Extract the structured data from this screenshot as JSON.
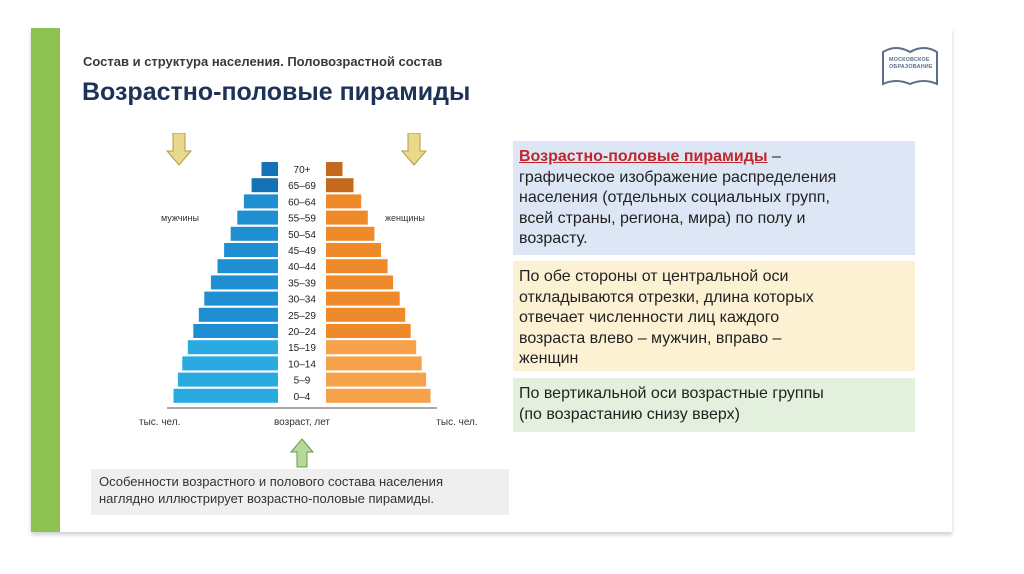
{
  "header": {
    "subtitle": "Состав и структура населения. Половозрастной состав",
    "title": "Возрастно-половые пирамиды"
  },
  "logo": {
    "line1": "МОСКОВСКОЕ",
    "line2": "ОБРАЗОВАНИЕ",
    "icon": "book-outline-icon",
    "color": "#5b6f8a"
  },
  "pyramid": {
    "label_left": "мужчины",
    "label_right": "женщины",
    "axis_left": "тыс. чел.",
    "axis_center": "возраст, лет",
    "axis_right": "тыс. чел.",
    "age_groups": [
      "0–4",
      "5–9",
      "10–14",
      "15–19",
      "20–24",
      "25–29",
      "30–34",
      "35–39",
      "40–44",
      "45–49",
      "50–54",
      "55–59",
      "60–64",
      "65–69",
      "70+"
    ],
    "male_relative": [
      95,
      91,
      87,
      82,
      77,
      72,
      67,
      61,
      55,
      49,
      43,
      37,
      31,
      24,
      15
    ],
    "female_relative": [
      95,
      91,
      87,
      82,
      77,
      72,
      67,
      61,
      56,
      50,
      44,
      38,
      32,
      25,
      15
    ],
    "colors": {
      "male_light": "#29abe2",
      "male_mid": "#1e8fd0",
      "male_dark": "#1572b6",
      "female_light": "#f7a24a",
      "female_mid": "#ef8a2a",
      "female_dark": "#c46a1e",
      "arrow_down": "#e8d98c",
      "arrow_up": "#b5d99a"
    }
  },
  "boxes": {
    "b1_term": "Возрастно-половые пирамиды",
    "b1_dash": " –",
    "b1_lines": [
      "графическое изображение распределения",
      "населения (отдельных социальных групп,",
      "всей страны, региона, мира) по полу и",
      "возрасту."
    ],
    "b2_lines": [
      "По обе стороны от центральной оси",
      "откладываются отрезки, длина которых",
      "отвечает численности лиц каждого",
      "возраста  влево – мужчин, вправо –",
      "женщин"
    ],
    "b3_lines": [
      "По вертикальной оси возрастные группы",
      "(по возрастанию снизу вверх)"
    ]
  },
  "caption": {
    "line1": "Особенности возрастного и полового состава населения",
    "line2": "наглядно иллюстрирует возрастно-половые пирамиды."
  },
  "theme": {
    "accent_green": "#8dc152",
    "title_color": "#1d3257"
  }
}
